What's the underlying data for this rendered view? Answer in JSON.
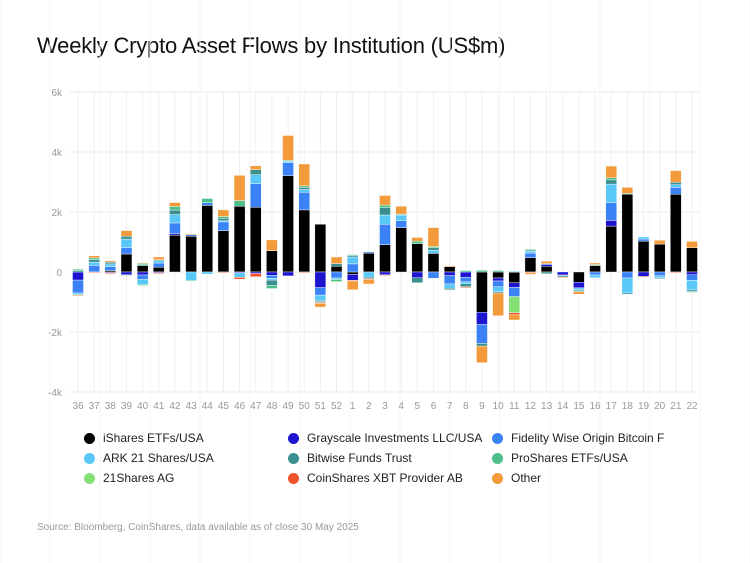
{
  "chart_data": {
    "type": "bar",
    "stacked": true,
    "title": "Weekly Crypto Asset Flows by Institution (US$m)",
    "xlabel": "",
    "ylabel": "",
    "ylim": [
      -4000,
      6000
    ],
    "yticks": [
      6000,
      4000,
      2000,
      0,
      -2000,
      -4000
    ],
    "ytick_labels": [
      "6k",
      "4k",
      "2k",
      "0",
      "-2k",
      "-4k"
    ],
    "grid": true,
    "legend_position": "bottom",
    "categories": [
      "36",
      "37",
      "38",
      "39",
      "40",
      "41",
      "42",
      "43",
      "44",
      "45",
      "46",
      "47",
      "48",
      "49",
      "50",
      "51",
      "52",
      "1",
      "2",
      "3",
      "4",
      "5",
      "6",
      "7",
      "8",
      "9",
      "10",
      "11",
      "12",
      "13",
      "14",
      "15",
      "16",
      "17",
      "18",
      "19",
      "20",
      "21",
      "22"
    ],
    "series": [
      {
        "name": "iShares ETFs/USA",
        "color": "#000000",
        "values": [
          0,
          0,
          50,
          600,
          210,
          160,
          1230,
          1190,
          2220,
          1380,
          2190,
          2160,
          710,
          3210,
          2070,
          1590,
          190,
          -80,
          630,
          910,
          1480,
          940,
          620,
          180,
          0,
          -1340,
          -200,
          -360,
          480,
          190,
          0,
          -340,
          210,
          1530,
          2600,
          1030,
          930,
          2590,
          810
        ]
      },
      {
        "name": "Grayscale Investments LLC/USA",
        "color": "#1c14cf",
        "values": [
          -270,
          0,
          -30,
          -90,
          -100,
          -30,
          55,
          0,
          0,
          0,
          -30,
          -50,
          -110,
          -130,
          0,
          -520,
          0,
          -200,
          0,
          -90,
          0,
          -190,
          0,
          -120,
          -180,
          -400,
          -100,
          -150,
          0,
          60,
          -100,
          -190,
          0,
          190,
          0,
          -150,
          0,
          0,
          -90
        ]
      },
      {
        "name": "Fidelity Wise Origin Bitcoin F",
        "color": "#3b82f6",
        "values": [
          -430,
          220,
          130,
          210,
          -150,
          140,
          350,
          60,
          90,
          290,
          0,
          780,
          -100,
          440,
          590,
          -250,
          -200,
          270,
          40,
          680,
          230,
          0,
          -210,
          -280,
          -150,
          -640,
          -190,
          -310,
          150,
          30,
          -30,
          0,
          -100,
          590,
          -200,
          70,
          -130,
          230,
          -190
        ]
      },
      {
        "name": "ARK 21 Shares/USA",
        "color": "#5ac8f7",
        "values": [
          -60,
          110,
          90,
          290,
          -180,
          80,
          280,
          -280,
          -70,
          40,
          -150,
          300,
          -60,
          40,
          90,
          -180,
          -50,
          230,
          -170,
          310,
          190,
          0,
          110,
          -140,
          -60,
          0,
          -170,
          20,
          60,
          0,
          0,
          -60,
          -90,
          620,
          -500,
          70,
          -70,
          90,
          -320
        ]
      },
      {
        "name": "Bitwise Funds Trust",
        "color": "#3a8f8f",
        "values": [
          50,
          80,
          60,
          90,
          30,
          30,
          150,
          0,
          0,
          80,
          0,
          170,
          -180,
          0,
          70,
          -40,
          90,
          50,
          -50,
          240,
          0,
          -170,
          80,
          -50,
          -100,
          -90,
          -40,
          0,
          40,
          -60,
          -40,
          -40,
          0,
          140,
          -40,
          0,
          -30,
          80,
          -50
        ]
      },
      {
        "name": "ProShares ETFs/USA",
        "color": "#4cc08a",
        "values": [
          40,
          60,
          0,
          -20,
          50,
          0,
          120,
          -30,
          140,
          60,
          190,
          0,
          -100,
          30,
          50,
          -30,
          -60,
          30,
          0,
          90,
          30,
          90,
          40,
          0,
          50,
          60,
          50,
          0,
          30,
          0,
          0,
          -30,
          40,
          70,
          20,
          0,
          0,
          0,
          -30
        ]
      },
      {
        "name": "21Shares AG",
        "color": "#84e073",
        "values": [
          0,
          0,
          0,
          0,
          -30,
          0,
          0,
          0,
          0,
          0,
          0,
          0,
          0,
          0,
          0,
          0,
          -30,
          0,
          0,
          0,
          0,
          0,
          0,
          0,
          0,
          0,
          0,
          -540,
          0,
          0,
          0,
          0,
          0,
          0,
          0,
          0,
          0,
          0,
          0
        ]
      },
      {
        "name": "CoinShares XBT Provider AB",
        "color": "#f0522b",
        "values": [
          0,
          -20,
          -20,
          0,
          0,
          -20,
          0,
          0,
          0,
          -20,
          -60,
          -110,
          0,
          0,
          -20,
          -30,
          0,
          -20,
          -30,
          -20,
          0,
          0,
          0,
          0,
          -30,
          0,
          0,
          -70,
          -30,
          0,
          0,
          0,
          0,
          0,
          0,
          0,
          0,
          -20,
          0
        ]
      },
      {
        "name": "Other",
        "color": "#f39a3a",
        "values": [
          -30,
          70,
          40,
          190,
          20,
          90,
          130,
          20,
          0,
          220,
          840,
          130,
          360,
          830,
          730,
          -120,
          220,
          -290,
          -150,
          320,
          260,
          120,
          630,
          30,
          0,
          -550,
          -760,
          -170,
          -50,
          80,
          -30,
          -80,
          50,
          390,
          200,
          -20,
          130,
          390,
          210
        ]
      }
    ],
    "source": "Source: Bloomberg, CoinShares, data available as of close 30 May 2025"
  }
}
